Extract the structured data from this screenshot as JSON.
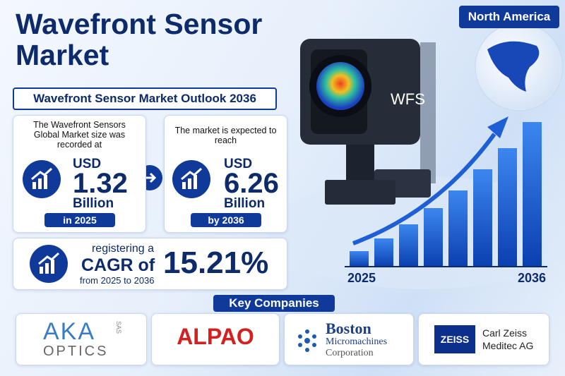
{
  "header": {
    "title": "Wavefront Sensor Market",
    "region": "North America",
    "subtitle": "Wavefront Sensor Market Outlook 2036"
  },
  "stats": [
    {
      "intro": "The Wavefront Sensors Global Market size was recorded at",
      "currency": "USD",
      "value": "1.32",
      "unit": "Billion",
      "period": "in 2025"
    },
    {
      "intro": "The market is expected to reach",
      "currency": "USD",
      "value": "6.26",
      "unit": "Billion",
      "period": "by 2036"
    }
  ],
  "cagr": {
    "prefix": "registering a",
    "label": "CAGR of",
    "value": "15.21%",
    "range": "from 2025 to 2036"
  },
  "illustration": {
    "camera_label": "WFS",
    "start_label": "2025",
    "end_label": "2036"
  },
  "key_companies": {
    "title": "Key Companies",
    "companies": [
      {
        "name": "AKA",
        "line2": "OPTICS",
        "suffix": "SAS"
      },
      {
        "name": "ALPAO"
      },
      {
        "name": "Boston",
        "line2": "Micromachines",
        "line3": "Corporation"
      },
      {
        "name": "ZEISS",
        "line2": "Carl Zeiss Meditec AG"
      }
    ]
  }
}
